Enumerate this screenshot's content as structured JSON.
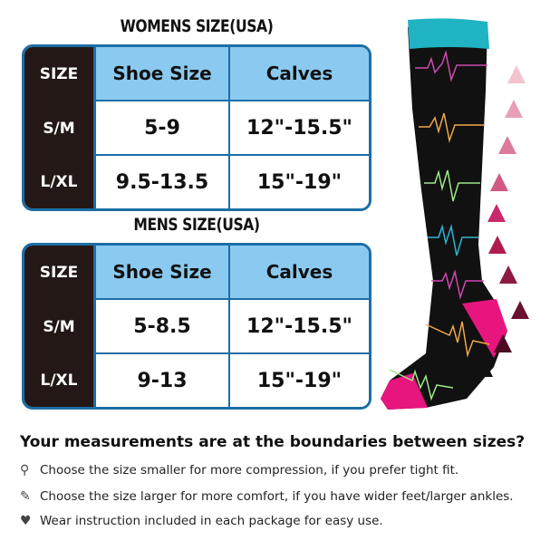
{
  "womens": {
    "title": "WOMENS SIZE(USA)",
    "headers": [
      "SIZE",
      "Shoe Size",
      "Calves"
    ],
    "rows": [
      {
        "size": "S/M",
        "shoe": "5-9",
        "calves": "12\"-15.5\""
      },
      {
        "size": "L/XL",
        "shoe": "9.5-13.5",
        "calves": "15\"-19\""
      }
    ]
  },
  "mens": {
    "title": "MENS SIZE(USA)",
    "headers": [
      "SIZE",
      "Shoe Size",
      "Calves"
    ],
    "rows": [
      {
        "size": "S/M",
        "shoe": "5-8.5",
        "calves": "12\"-15.5\""
      },
      {
        "size": "L/XL",
        "shoe": "9-13",
        "calves": "15\"-19\""
      }
    ]
  },
  "notes": {
    "question": "Your measurements are at the boundaries between sizes?",
    "tips": [
      {
        "icon": "stethoscope-icon",
        "text": "Choose the size smaller for more compression, if you prefer tight fit."
      },
      {
        "icon": "syringe-icon",
        "text": "Choose the size larger for more comfort, if you have wider feet/larger ankles."
      },
      {
        "icon": "heart-icon",
        "text": "Wear instruction included in each package for easy use."
      }
    ]
  },
  "colors": {
    "border": "#1b6ea6",
    "header": "#8bcaf0",
    "label_col": "#231815",
    "sock_body": "#111111",
    "sock_cuff": "#1fb3c4",
    "sock_heel": "#e8157f"
  }
}
